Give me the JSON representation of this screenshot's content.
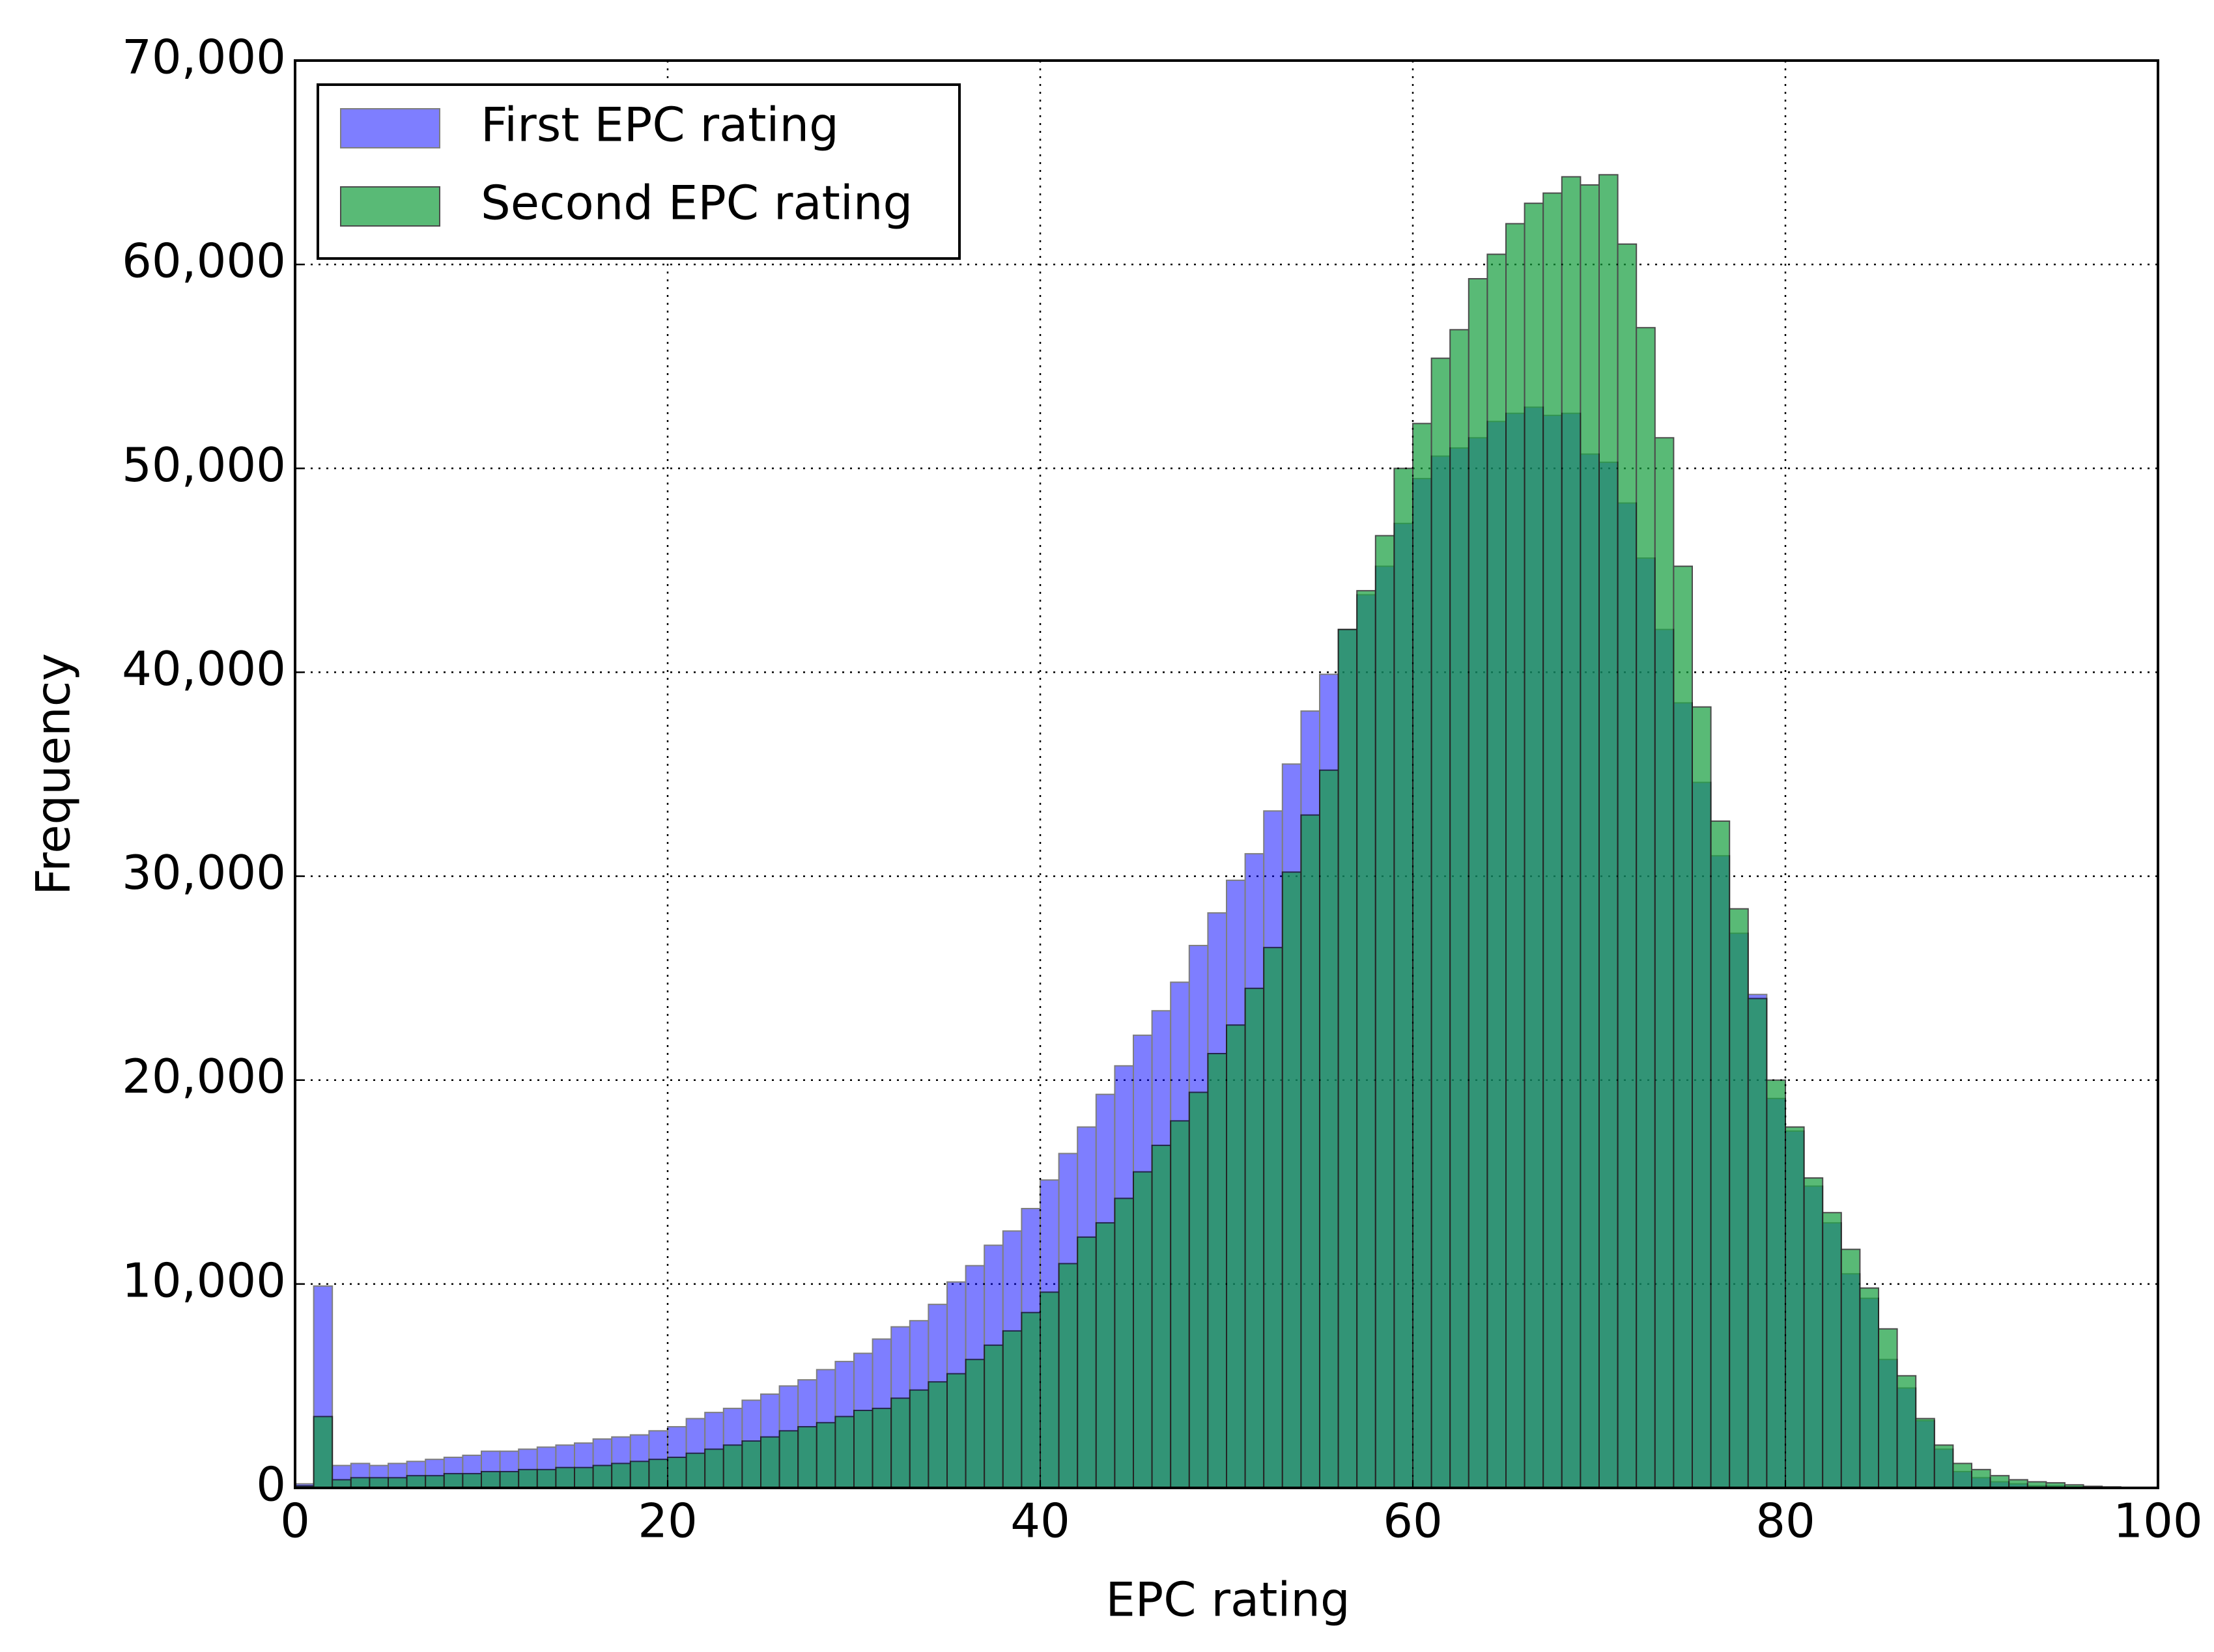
{
  "chart_data": {
    "type": "histogram",
    "xlabel": "EPC rating",
    "ylabel": "Frequency",
    "bins": [
      0,
      1,
      2,
      3,
      4,
      5,
      6,
      7,
      8,
      9,
      10,
      11,
      12,
      13,
      14,
      15,
      16,
      17,
      18,
      19,
      20,
      21,
      22,
      23,
      24,
      25,
      26,
      27,
      28,
      29,
      30,
      31,
      32,
      33,
      34,
      35,
      36,
      37,
      38,
      39,
      40,
      41,
      42,
      43,
      44,
      45,
      46,
      47,
      48,
      49,
      50,
      51,
      52,
      53,
      54,
      55,
      56,
      57,
      58,
      59,
      60,
      61,
      62,
      63,
      64,
      65,
      66,
      67,
      68,
      69,
      70,
      71,
      72,
      73,
      74,
      75,
      76,
      77,
      78,
      79,
      80,
      81,
      82,
      83,
      84,
      85,
      86,
      87,
      88,
      89,
      90,
      91,
      92,
      93,
      94,
      95,
      96,
      97,
      98,
      99,
      100
    ],
    "series": [
      {
        "name": "First EPC rating",
        "color": "#0000ff",
        "alpha": 0.5,
        "values": [
          200,
          9900,
          1100,
          1200,
          1100,
          1200,
          1300,
          1400,
          1500,
          1600,
          1800,
          1800,
          1900,
          2000,
          2100,
          2200,
          2400,
          2500,
          2600,
          2800,
          3000,
          3400,
          3700,
          3900,
          4300,
          4600,
          5000,
          5300,
          5800,
          6200,
          6600,
          7300,
          7900,
          8200,
          9000,
          10100,
          10900,
          11900,
          12600,
          13700,
          15100,
          16400,
          17700,
          19300,
          20700,
          22200,
          23400,
          24800,
          26600,
          28200,
          29800,
          31100,
          33200,
          35500,
          38100,
          39900,
          42100,
          43800,
          45200,
          47300,
          49500,
          50600,
          51000,
          51500,
          52300,
          52700,
          53000,
          52600,
          52700,
          50700,
          50300,
          48300,
          45600,
          42100,
          38500,
          34600,
          31000,
          27200,
          24200,
          19100,
          17500,
          14800,
          13000,
          10500,
          9300,
          6300,
          4900,
          3300,
          1900,
          800,
          500,
          300,
          200,
          100,
          100,
          50,
          30,
          20,
          10,
          10
        ]
      },
      {
        "name": "Second EPC rating",
        "color": "#139e3d",
        "alpha": 0.7,
        "values": [
          100,
          3500,
          400,
          500,
          500,
          500,
          600,
          600,
          700,
          700,
          800,
          800,
          900,
          900,
          1000,
          1000,
          1100,
          1200,
          1300,
          1400,
          1500,
          1700,
          1900,
          2100,
          2300,
          2500,
          2800,
          3000,
          3200,
          3500,
          3800,
          3900,
          4400,
          4800,
          5200,
          5600,
          6300,
          7000,
          7700,
          8600,
          9600,
          11000,
          12300,
          13000,
          14200,
          15500,
          16800,
          18000,
          19400,
          21300,
          22700,
          24500,
          26500,
          30200,
          33000,
          35200,
          42100,
          44000,
          46700,
          50000,
          52200,
          55400,
          56800,
          59300,
          60500,
          62000,
          63000,
          63500,
          64300,
          63900,
          64400,
          61000,
          56900,
          51500,
          45200,
          38300,
          32700,
          28400,
          24000,
          20000,
          17700,
          15200,
          13500,
          11700,
          9800,
          7800,
          5500,
          3400,
          2100,
          1200,
          900,
          600,
          400,
          300,
          250,
          150,
          80,
          50,
          30,
          20
        ]
      }
    ],
    "xlim": [
      0,
      100
    ],
    "xticks": [
      0,
      20,
      40,
      60,
      80,
      100
    ],
    "ylim": [
      0,
      70000
    ],
    "yticks": [
      0,
      {
        "value": 10000,
        "label": "10,000"
      },
      {
        "value": 20000,
        "label": "20,000"
      },
      {
        "value": 30000,
        "label": "30,000"
      },
      {
        "value": 40000,
        "label": "40,000"
      },
      {
        "value": 50000,
        "label": "50,000"
      },
      {
        "value": 60000,
        "label": "60,000"
      },
      {
        "value": 70000,
        "label": "70,000"
      }
    ],
    "grid": true,
    "legend": "upper left"
  }
}
